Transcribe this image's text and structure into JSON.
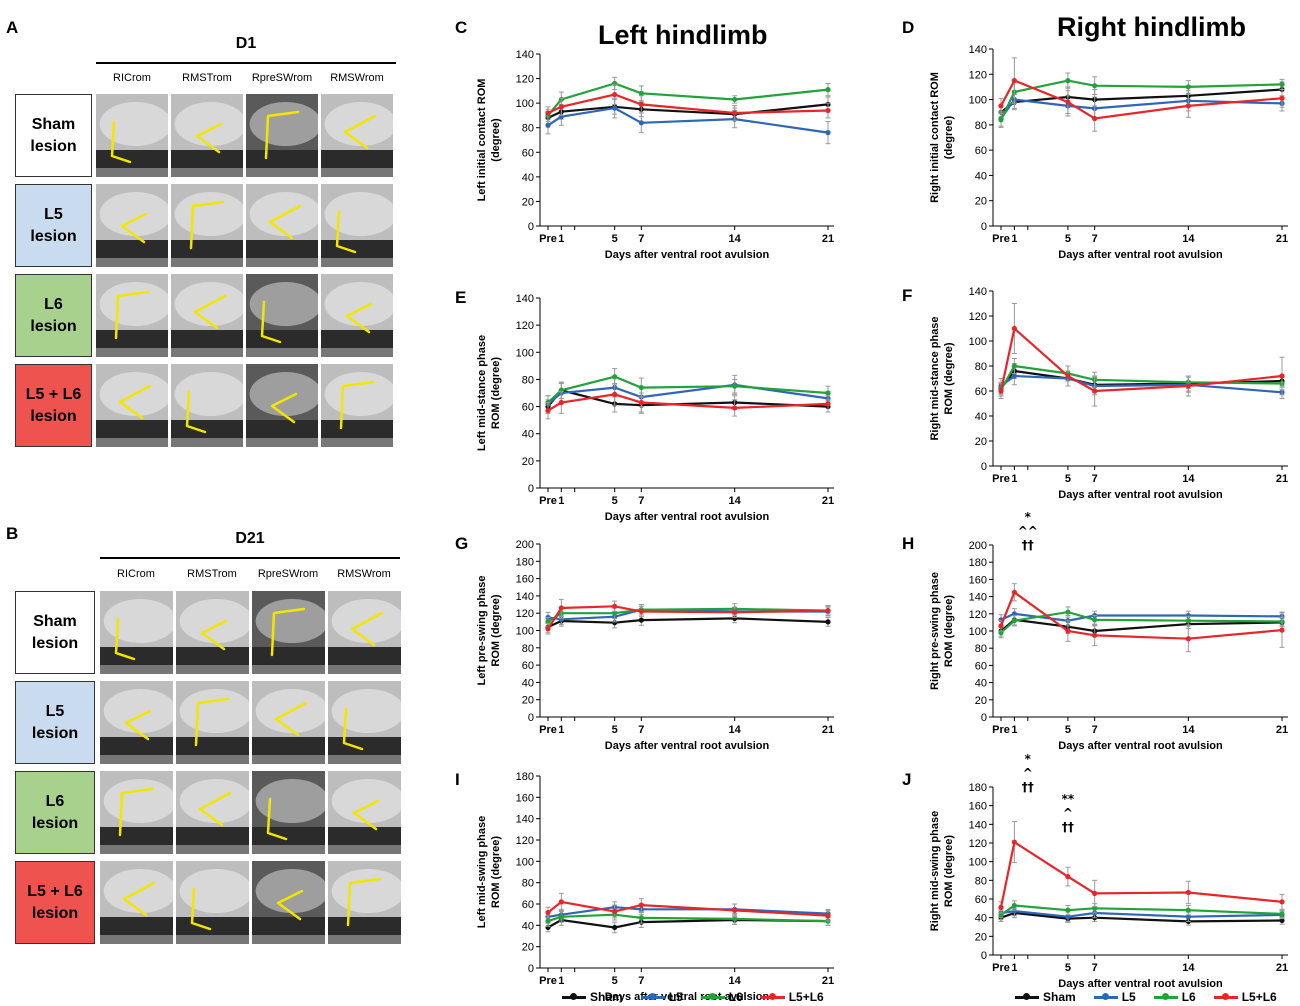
{
  "panel_labels": {
    "A": "A",
    "B": "B",
    "C": "C",
    "D": "D",
    "E": "E",
    "F": "F",
    "G": "G",
    "H": "H",
    "I": "I",
    "J": "J"
  },
  "headings": {
    "left": "Left hindlimb",
    "right": "Right hindlimb"
  },
  "photo_grids": [
    {
      "id": "A",
      "day": "D1",
      "columns": [
        "RICrom",
        "RMSTrom",
        "RpreSWrom",
        "RMSWrom"
      ],
      "rows": [
        {
          "label": "Sham\nlesion",
          "color": "#ffffff"
        },
        {
          "label": "L5\nlesion",
          "color": "#c9dcef"
        },
        {
          "label": "L6\nlesion",
          "color": "#a9d18e"
        },
        {
          "label": "L5 + L6\nlesion",
          "color": "#ef5350"
        }
      ]
    },
    {
      "id": "B",
      "day": "D21",
      "columns": [
        "RICrom",
        "RMSTrom",
        "RpreSWrom",
        "RMSWrom"
      ],
      "rows": [
        {
          "label": "Sham\nlesion",
          "color": "#ffffff"
        },
        {
          "label": "L5\nlesion",
          "color": "#c9dcef"
        },
        {
          "label": "L6\nlesion",
          "color": "#a9d18e"
        },
        {
          "label": "L5 + L6\nlesion",
          "color": "#ef5350"
        }
      ]
    }
  ],
  "colors": {
    "Sham": "#111111",
    "L5": "#2f66b8",
    "L6": "#22a33a",
    "L5+L6": "#e8262a",
    "error": "#999999"
  },
  "legend": [
    "Sham",
    "L5",
    "L6",
    "L5+L6"
  ],
  "chart_data": [
    {
      "id": "C",
      "type": "line",
      "ylabel": "Left initial contact ROM\n(degree)",
      "xlabel": "Days after ventral root avulsion",
      "ylim": [
        0,
        140
      ],
      "ystep": 20,
      "x": [
        0,
        1,
        2,
        5,
        7,
        14,
        21
      ],
      "xticks": [
        "Pre",
        "1",
        "",
        "5",
        "7",
        "14",
        "21"
      ],
      "annotations": [],
      "series": [
        {
          "name": "Sham",
          "values": [
            88,
            93,
            null,
            97,
            95,
            91,
            99
          ],
          "err": [
            5,
            6,
            null,
            6,
            6,
            5,
            6
          ]
        },
        {
          "name": "L5",
          "values": [
            82,
            89,
            null,
            96,
            84,
            87,
            76
          ],
          "err": [
            7,
            7,
            null,
            8,
            8,
            7,
            9
          ]
        },
        {
          "name": "L6",
          "values": [
            90,
            103,
            null,
            116,
            108,
            103,
            111
          ],
          "err": [
            5,
            6,
            null,
            5,
            6,
            3,
            5
          ]
        },
        {
          "name": "L5+L6",
          "values": [
            92,
            97,
            null,
            107,
            99,
            92,
            94
          ],
          "err": [
            5,
            7,
            null,
            8,
            7,
            6,
            6
          ]
        }
      ]
    },
    {
      "id": "D",
      "type": "line",
      "ylabel": "Right initial contact ROM\n(degree)",
      "xlabel": "Days after ventral root avulsion",
      "ylim": [
        0,
        140
      ],
      "ystep": 20,
      "x": [
        0,
        1,
        2,
        5,
        7,
        14,
        21
      ],
      "xticks": [
        "Pre",
        "1",
        "",
        "5",
        "7",
        "14",
        "21"
      ],
      "annotations": [],
      "series": [
        {
          "name": "Sham",
          "values": [
            90,
            98,
            null,
            102,
            100,
            103,
            108
          ],
          "err": [
            5,
            6,
            null,
            8,
            8,
            8,
            6
          ]
        },
        {
          "name": "L5",
          "values": [
            85,
            100,
            null,
            95,
            93,
            99,
            97
          ],
          "err": [
            6,
            7,
            null,
            8,
            9,
            8,
            6
          ]
        },
        {
          "name": "L6",
          "values": [
            84,
            106,
            null,
            115,
            111,
            110,
            112
          ],
          "err": [
            6,
            8,
            null,
            6,
            7,
            5,
            4
          ]
        },
        {
          "name": "L5+L6",
          "values": [
            95,
            115,
            null,
            98,
            85,
            95,
            101
          ],
          "err": [
            6,
            18,
            null,
            9,
            10,
            9,
            7
          ]
        }
      ]
    },
    {
      "id": "E",
      "type": "line",
      "ylabel": "Left mid-stance phase\nROM (degree)",
      "xlabel": "Days after ventral root avulsion",
      "ylim": [
        0,
        140
      ],
      "ystep": 20,
      "x": [
        0,
        1,
        2,
        5,
        7,
        14,
        21
      ],
      "xticks": [
        "Pre",
        "1",
        "",
        "5",
        "7",
        "14",
        "21"
      ],
      "annotations": [],
      "series": [
        {
          "name": "Sham",
          "values": [
            60,
            72,
            null,
            62,
            61,
            63,
            60
          ],
          "err": [
            5,
            6,
            null,
            6,
            6,
            5,
            4
          ]
        },
        {
          "name": "L5",
          "values": [
            62,
            70,
            null,
            74,
            67,
            76,
            66
          ],
          "err": [
            6,
            7,
            null,
            7,
            7,
            7,
            5
          ]
        },
        {
          "name": "L6",
          "values": [
            63,
            72,
            null,
            82,
            74,
            75,
            70
          ],
          "err": [
            5,
            6,
            null,
            6,
            7,
            5,
            5
          ]
        },
        {
          "name": "L5+L6",
          "values": [
            57,
            63,
            null,
            69,
            63,
            59,
            62
          ],
          "err": [
            6,
            8,
            null,
            8,
            7,
            6,
            6
          ]
        }
      ]
    },
    {
      "id": "F",
      "type": "line",
      "ylabel": "Right mid-stance phase\nROM (degree)",
      "xlabel": "Days after ventral root avulsion",
      "ylim": [
        0,
        140
      ],
      "ystep": 20,
      "x": [
        0,
        1,
        2,
        5,
        7,
        14,
        21
      ],
      "xticks": [
        "Pre",
        "1",
        "",
        "5",
        "7",
        "14",
        "21"
      ],
      "annotations": [],
      "series": [
        {
          "name": "Sham",
          "values": [
            62,
            76,
            null,
            70,
            65,
            66,
            68
          ],
          "err": [
            5,
            6,
            null,
            6,
            6,
            6,
            5
          ]
        },
        {
          "name": "L5",
          "values": [
            64,
            72,
            null,
            70,
            64,
            65,
            59
          ],
          "err": [
            6,
            7,
            null,
            6,
            7,
            6,
            5
          ]
        },
        {
          "name": "L6",
          "values": [
            61,
            80,
            null,
            74,
            69,
            67,
            66
          ],
          "err": [
            5,
            6,
            null,
            6,
            6,
            5,
            5
          ]
        },
        {
          "name": "L5+L6",
          "values": [
            60,
            110,
            null,
            72,
            60,
            64,
            72
          ],
          "err": [
            6,
            20,
            null,
            8,
            12,
            8,
            15
          ]
        }
      ]
    },
    {
      "id": "G",
      "type": "line",
      "ylabel": "Left pre-swing phase\nROM (degree)",
      "xlabel": "Days after ventral root avulsion",
      "ylim": [
        0,
        200
      ],
      "ystep": 20,
      "x": [
        0,
        1,
        2,
        5,
        7,
        14,
        21
      ],
      "xticks": [
        "Pre",
        "1",
        "",
        "5",
        "7",
        "14",
        "21"
      ],
      "annotations": [],
      "series": [
        {
          "name": "Sham",
          "values": [
            104,
            111,
            null,
            109,
            112,
            114,
            110
          ],
          "err": [
            6,
            6,
            null,
            6,
            6,
            5,
            5
          ]
        },
        {
          "name": "L5",
          "values": [
            115,
            113,
            null,
            116,
            124,
            122,
            122
          ],
          "err": [
            6,
            6,
            null,
            6,
            6,
            5,
            5
          ]
        },
        {
          "name": "L6",
          "values": [
            110,
            120,
            null,
            120,
            124,
            125,
            123
          ],
          "err": [
            5,
            6,
            null,
            6,
            6,
            6,
            5
          ]
        },
        {
          "name": "L5+L6",
          "values": [
            102,
            126,
            null,
            128,
            122,
            121,
            123
          ],
          "err": [
            6,
            10,
            null,
            6,
            6,
            6,
            6
          ]
        }
      ]
    },
    {
      "id": "H",
      "type": "line",
      "ylabel": "Right pre-swing phase\nROM (degree)",
      "xlabel": "Days after ventral root avulsion",
      "ylim": [
        0,
        200
      ],
      "ystep": 20,
      "x": [
        0,
        1,
        2,
        5,
        7,
        14,
        21
      ],
      "xticks": [
        "Pre",
        "1",
        "",
        "5",
        "7",
        "14",
        "21"
      ],
      "annotations": [
        {
          "x": 2,
          "lines": [
            "*",
            "^^",
            "††"
          ]
        }
      ],
      "series": [
        {
          "name": "Sham",
          "values": [
            100,
            113,
            null,
            105,
            100,
            108,
            110
          ],
          "err": [
            6,
            6,
            null,
            8,
            6,
            5,
            5
          ]
        },
        {
          "name": "L5",
          "values": [
            113,
            120,
            null,
            112,
            118,
            118,
            117
          ],
          "err": [
            6,
            6,
            null,
            6,
            5,
            5,
            5
          ]
        },
        {
          "name": "L6",
          "values": [
            98,
            112,
            null,
            122,
            113,
            112,
            111
          ],
          "err": [
            6,
            6,
            null,
            6,
            5,
            5,
            5
          ]
        },
        {
          "name": "L5+L6",
          "values": [
            106,
            145,
            null,
            100,
            95,
            91,
            101
          ],
          "err": [
            6,
            10,
            null,
            12,
            12,
            15,
            20
          ]
        }
      ]
    },
    {
      "id": "I",
      "type": "line",
      "ylabel": "Left mid-swing phase\nROM (degree)",
      "xlabel": "Days after ventral root avulsion",
      "ylim": [
        0,
        180
      ],
      "ystep": 20,
      "x": [
        0,
        1,
        2,
        5,
        7,
        14,
        21
      ],
      "xticks": [
        "Pre",
        "1",
        "",
        "5",
        "7",
        "14",
        "21"
      ],
      "annotations": [],
      "series": [
        {
          "name": "Sham",
          "values": [
            38,
            45,
            null,
            38,
            43,
            45,
            44
          ],
          "err": [
            4,
            5,
            null,
            5,
            5,
            4,
            4
          ]
        },
        {
          "name": "L5",
          "values": [
            48,
            50,
            null,
            57,
            55,
            55,
            51
          ],
          "err": [
            5,
            5,
            null,
            5,
            5,
            5,
            4
          ]
        },
        {
          "name": "L6",
          "values": [
            44,
            48,
            null,
            50,
            47,
            46,
            44
          ],
          "err": [
            5,
            5,
            null,
            5,
            5,
            5,
            4
          ]
        },
        {
          "name": "L5+L6",
          "values": [
            52,
            62,
            null,
            53,
            59,
            54,
            49
          ],
          "err": [
            5,
            8,
            null,
            6,
            6,
            6,
            5
          ]
        }
      ]
    },
    {
      "id": "J",
      "type": "line",
      "ylabel": "Right mid-swing phase\nROM (degree)",
      "xlabel": "Days after ventral root avulsion",
      "ylim": [
        0,
        180
      ],
      "ystep": 20,
      "x": [
        0,
        1,
        2,
        5,
        7,
        14,
        21
      ],
      "xticks": [
        "Pre",
        "1",
        "",
        "5",
        "7",
        "14",
        "21"
      ],
      "annotations": [
        {
          "x": 2,
          "lines": [
            "*",
            "^",
            "††"
          ]
        },
        {
          "x": 5,
          "lines": [
            "**",
            "^",
            "††"
          ]
        }
      ],
      "series": [
        {
          "name": "Sham",
          "values": [
            40,
            45,
            null,
            39,
            40,
            36,
            37
          ],
          "err": [
            4,
            5,
            null,
            4,
            4,
            4,
            4
          ]
        },
        {
          "name": "L5",
          "values": [
            45,
            47,
            null,
            41,
            45,
            41,
            43
          ],
          "err": [
            5,
            5,
            null,
            5,
            5,
            5,
            4
          ]
        },
        {
          "name": "L6",
          "values": [
            43,
            53,
            null,
            48,
            50,
            48,
            44
          ],
          "err": [
            5,
            5,
            null,
            5,
            5,
            5,
            4
          ]
        },
        {
          "name": "L5+L6",
          "values": [
            51,
            121,
            null,
            84,
            66,
            67,
            57
          ],
          "err": [
            6,
            22,
            null,
            10,
            14,
            12,
            8
          ]
        }
      ]
    }
  ]
}
